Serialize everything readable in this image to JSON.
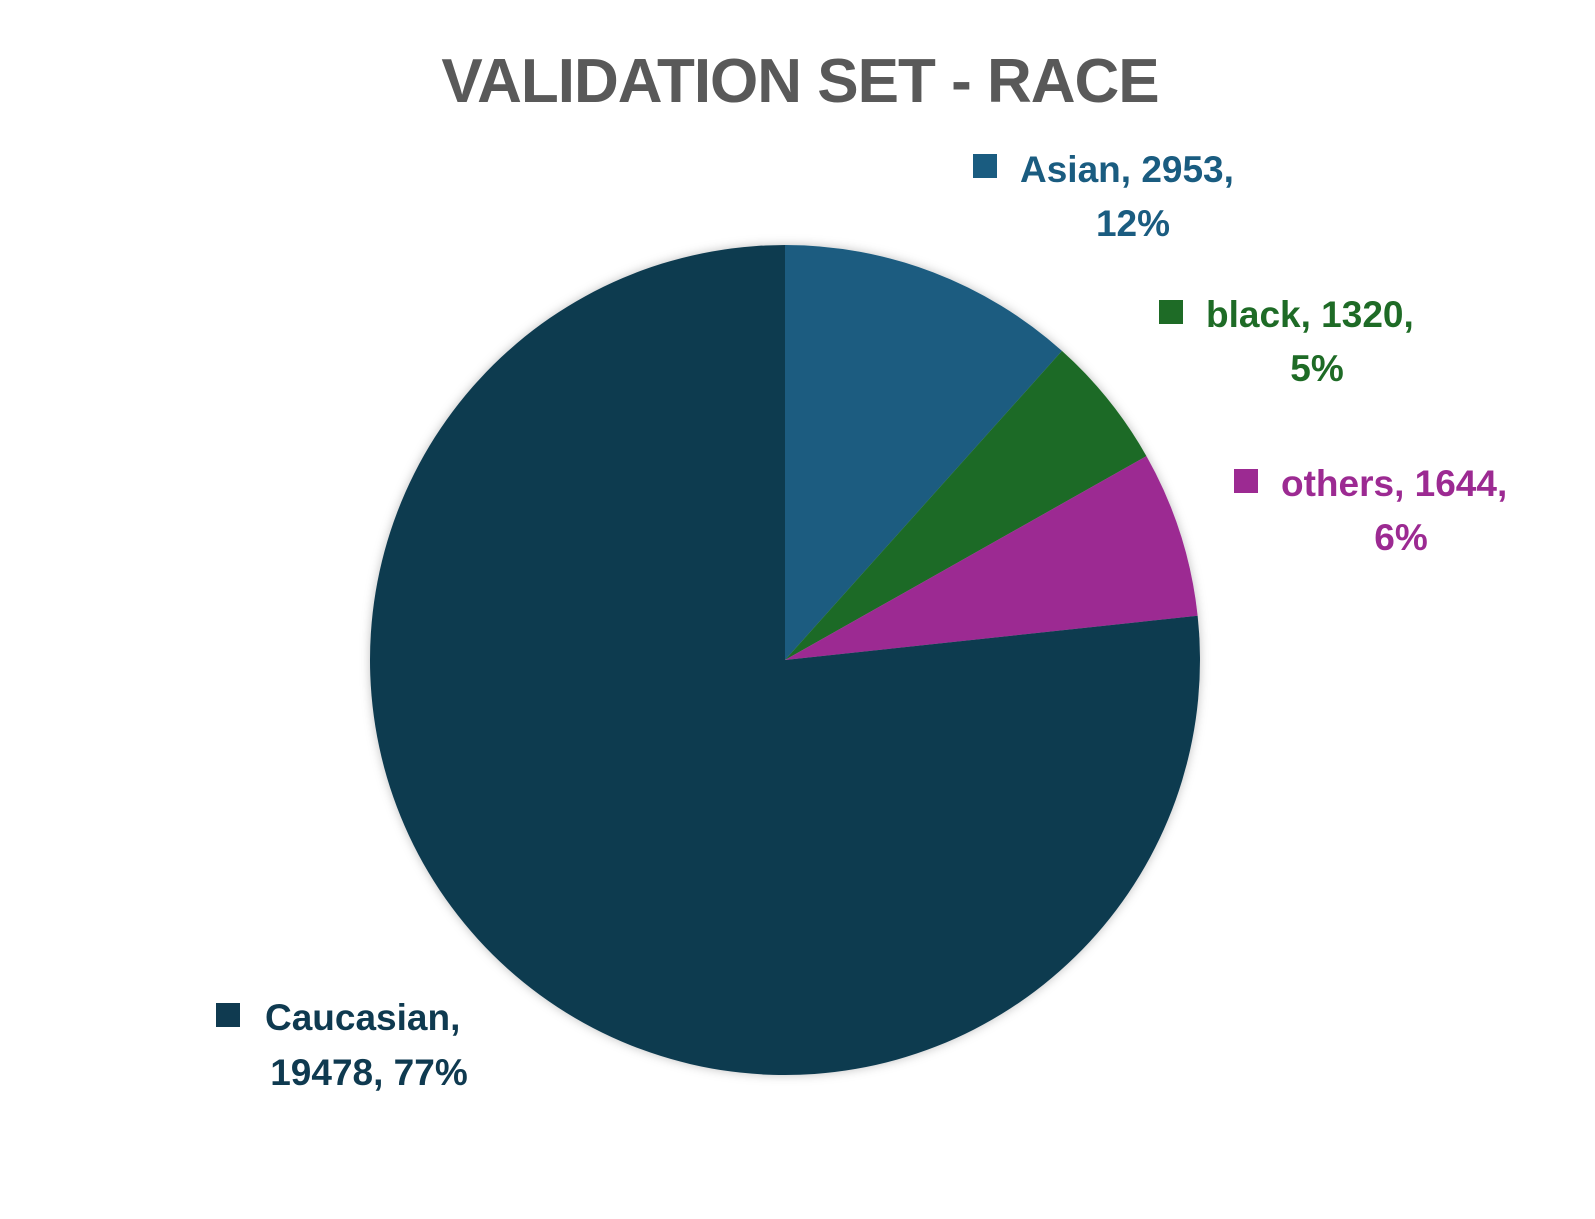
{
  "chart_data": {
    "type": "pie",
    "title": "VALIDATION SET - RACE",
    "categories": [
      "Asian",
      "black",
      "others",
      "Caucasian"
    ],
    "values": [
      2953,
      1320,
      1644,
      19478
    ],
    "percent_labels": [
      "12%",
      "5%",
      "6%",
      "77%"
    ],
    "colors": [
      "#1a5c80",
      "#1e6b26",
      "#9c2a92",
      "#0f3a50"
    ],
    "data_labels": [
      {
        "lines": [
          "Asian, 2953,",
          "12%"
        ]
      },
      {
        "lines": [
          "black, 1320,",
          "5%"
        ]
      },
      {
        "lines": [
          "others, 1644,",
          "6%"
        ]
      },
      {
        "lines": [
          "Caucasian,",
          "19478, 77%"
        ]
      }
    ],
    "legend": "none",
    "start_angle_deg": 0,
    "direction": "clockwise"
  }
}
